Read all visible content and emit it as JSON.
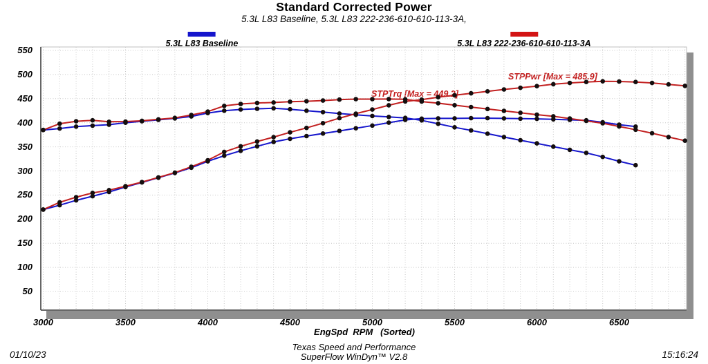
{
  "header": {
    "title": "Standard Corrected Power",
    "subtitle": "5.3L L83 Baseline, 5.3L L83 222-236-610-610-113-3A,"
  },
  "legend": [
    {
      "label": "5.3L L83 Baseline",
      "color": "#1515cc"
    },
    {
      "label": "5.3L L83 222-236-610-610-113-3A",
      "color": "#d31414"
    }
  ],
  "annotations": {
    "trq": "STPTrq [Max = 449.2]",
    "pwr": "STPPwr [Max = 485.9]"
  },
  "x_axis": {
    "label": "EngSpd  RPM   (Sorted)",
    "ticks": [
      3000,
      3500,
      4000,
      4500,
      5000,
      5500,
      6000,
      6500
    ]
  },
  "y_axis": {
    "ticks": [
      550,
      500,
      450,
      400,
      350,
      300,
      250,
      200,
      150,
      100,
      50
    ]
  },
  "footer": {
    "date": "01/10/23",
    "org": "Texas Speed and Performance",
    "app": "SuperFlow WinDyn™ V2.8",
    "time": "15:16:24"
  },
  "colors": {
    "blue": "#1515cc",
    "red": "#c22020",
    "annotation_red": "#c31d1d",
    "marker": "#140e0e",
    "grid": "#c9c9c9",
    "axis_dark": "#333333",
    "frame_light": "#bfbfbf",
    "shadow_gray": "#8f8f8f"
  },
  "chart_data": {
    "type": "line",
    "title": "Standard Corrected Power",
    "subtitle": "5.3L L83 Baseline, 5.3L L83 222-236-610-610-113-3A,",
    "xlabel": "EngSpd RPM (Sorted)",
    "ylabel": "",
    "xlim": [
      2985,
      6915
    ],
    "ylim": [
      13,
      557
    ],
    "x_major_ticks": [
      3000,
      3500,
      4000,
      4500,
      5000,
      5500,
      6000,
      6500
    ],
    "y_major_ticks": [
      50,
      100,
      150,
      200,
      250,
      300,
      350,
      400,
      450,
      500,
      550
    ],
    "grid": "dotted light-gray; vertical minor every 100 RPM, horizontal every 50",
    "legend_position": "top, two entries with color bars above plot",
    "marker": "filled black circle at every sample point",
    "annotations": [
      {
        "text": "STPTrq [Max = 449.2]",
        "series": "5.3L L83 222-236-610-610-113-3A STPTrq",
        "max": 449.2
      },
      {
        "text": "STPPwr [Max = 485.9]",
        "series": "5.3L L83 222-236-610-610-113-3A STPPwr",
        "max": 485.9
      }
    ],
    "series": [
      {
        "name": "5.3L L83 Baseline",
        "channel": "STPTrq",
        "color": "#1515cc",
        "rpm": [
          3000,
          3100,
          3200,
          3300,
          3400,
          3500,
          3600,
          3700,
          3800,
          3900,
          4000,
          4100,
          4200,
          4300,
          4400,
          4500,
          4600,
          4700,
          4800,
          4900,
          5000,
          5100,
          5200,
          5300,
          5400,
          5500,
          5600,
          5700,
          5800,
          5900,
          6000,
          6100,
          6200,
          6300,
          6400,
          6500,
          6600
        ],
        "values": [
          385.0,
          388.0,
          392.0,
          394.0,
          396.0,
          400.0,
          403.0,
          406.0,
          409.0,
          413.0,
          420.0,
          425.0,
          427.5,
          429.0,
          430.0,
          428.0,
          425.0,
          422.0,
          419.0,
          416.5,
          414.0,
          412.0,
          410.0,
          404.8,
          397.8,
          390.6,
          384.1,
          377.3,
          370.4,
          363.6,
          357.1,
          350.4,
          343.9,
          337.6,
          329.1,
          320.0,
          311.9
        ]
      },
      {
        "name": "5.3L L83 Baseline",
        "channel": "STPPwr",
        "color": "#1515cc",
        "rpm": [
          3000,
          3100,
          3200,
          3300,
          3400,
          3500,
          3600,
          3700,
          3800,
          3900,
          4000,
          4100,
          4200,
          4300,
          4400,
          4500,
          4600,
          4700,
          4800,
          4900,
          5000,
          5100,
          5200,
          5300,
          5400,
          5500,
          5600,
          5700,
          5800,
          5900,
          6000,
          6100,
          6200,
          6300,
          6400,
          6500,
          6600
        ],
        "values": [
          219.9,
          229.0,
          238.9,
          247.6,
          256.4,
          266.6,
          276.2,
          286.0,
          295.9,
          306.7,
          319.9,
          331.7,
          341.9,
          351.2,
          360.2,
          366.7,
          372.3,
          377.7,
          382.9,
          388.6,
          394.1,
          400.1,
          405.9,
          408.5,
          409.0,
          409.0,
          409.5,
          409.5,
          409.0,
          408.5,
          408.0,
          407.0,
          406.0,
          405.0,
          401.0,
          396.0,
          392.0
        ]
      },
      {
        "name": "5.3L L83 222-236-610-610-113-3A",
        "channel": "STPTrq",
        "color": "#c22020",
        "rpm": [
          3000,
          3100,
          3200,
          3300,
          3400,
          3500,
          3600,
          3700,
          3800,
          3900,
          4000,
          4100,
          4200,
          4300,
          4400,
          4500,
          4600,
          4700,
          4800,
          4900,
          5000,
          5100,
          5200,
          5300,
          5400,
          5500,
          5600,
          5700,
          5800,
          5900,
          6000,
          6100,
          6200,
          6300,
          6400,
          6500,
          6600,
          6700,
          6800,
          6900
        ],
        "values": [
          385.0,
          398.0,
          403.0,
          405.0,
          402.0,
          402.5,
          404.0,
          407.0,
          410.0,
          416.0,
          423.0,
          435.0,
          439.0,
          441.0,
          442.0,
          443.5,
          444.5,
          446.0,
          448.0,
          449.0,
          449.0,
          449.2,
          448.5,
          443.9,
          440.6,
          436.4,
          432.4,
          428.5,
          424.7,
          420.6,
          416.7,
          413.3,
          408.8,
          403.9,
          398.8,
          392.3,
          385.6,
          378.2,
          370.4,
          362.7
        ]
      },
      {
        "name": "5.3L L83 222-236-610-610-113-3A",
        "channel": "STPPwr",
        "color": "#c22020",
        "rpm": [
          3000,
          3100,
          3200,
          3300,
          3400,
          3500,
          3600,
          3700,
          3800,
          3900,
          4000,
          4100,
          4200,
          4300,
          4400,
          4500,
          4600,
          4700,
          4800,
          4900,
          5000,
          5100,
          5200,
          5300,
          5400,
          5500,
          5600,
          5700,
          5800,
          5900,
          6000,
          6100,
          6200,
          6300,
          6400,
          6500,
          6600,
          6700,
          6800,
          6900
        ],
        "values": [
          219.9,
          234.9,
          245.5,
          254.4,
          260.2,
          268.3,
          276.9,
          286.7,
          296.6,
          308.8,
          322.2,
          339.6,
          351.1,
          361.0,
          370.2,
          380.1,
          389.3,
          399.1,
          409.4,
          418.9,
          427.4,
          436.2,
          444.1,
          448.0,
          453.0,
          457.0,
          461.0,
          465.0,
          469.0,
          472.5,
          476.0,
          480.0,
          482.5,
          484.5,
          485.9,
          485.5,
          484.5,
          482.5,
          479.5,
          476.5
        ]
      }
    ]
  }
}
